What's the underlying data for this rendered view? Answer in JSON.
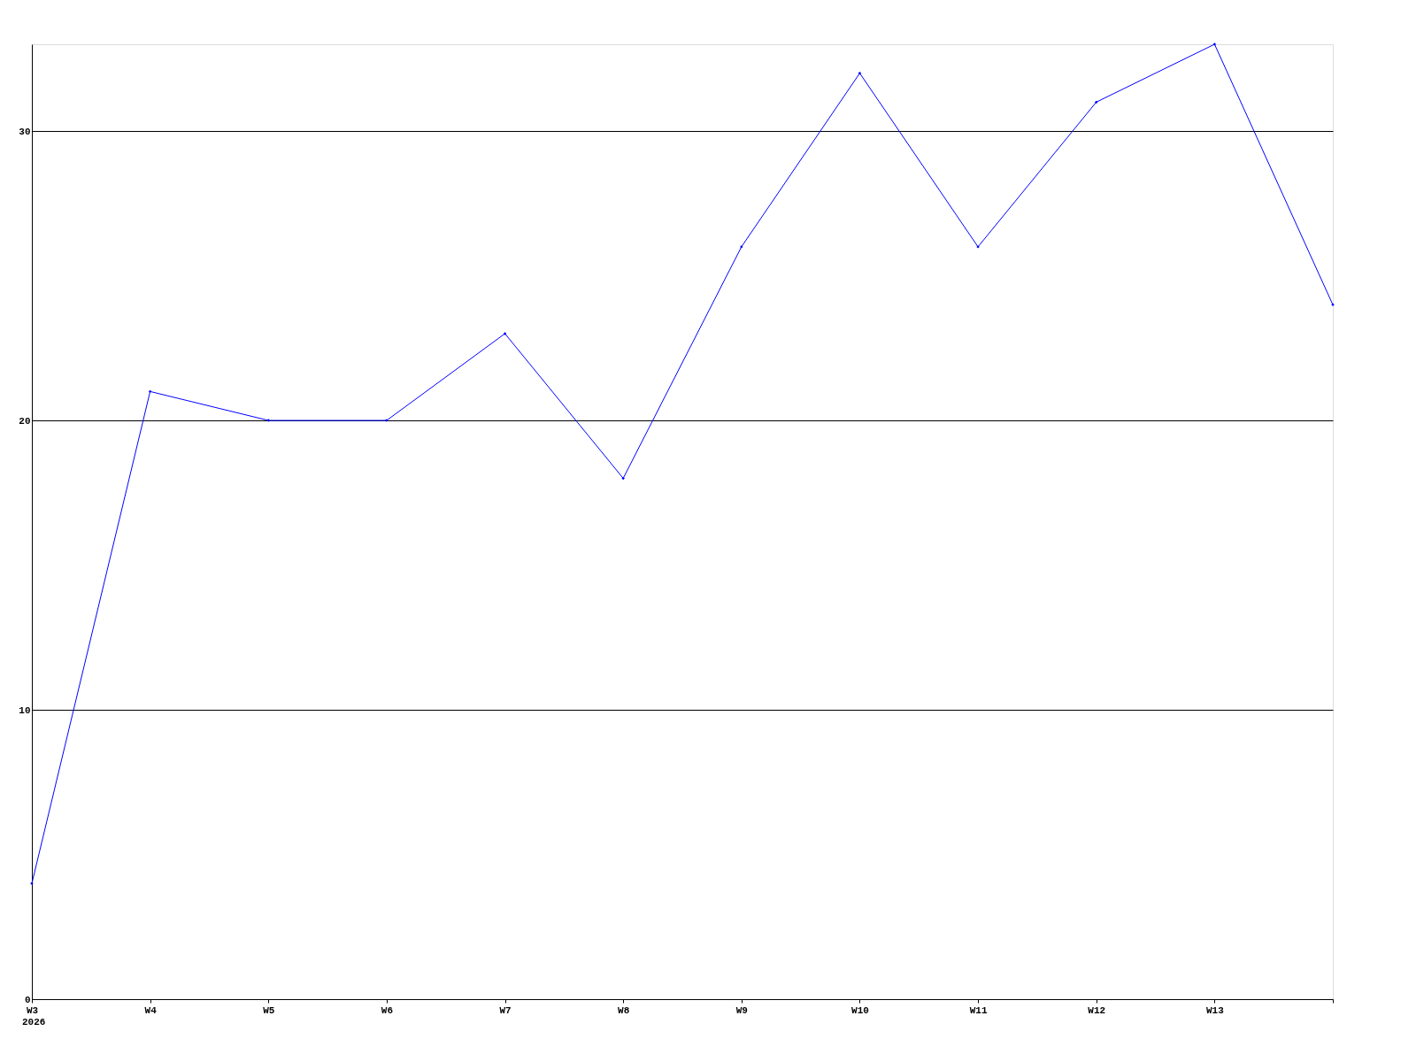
{
  "chart_data": {
    "type": "line",
    "categories": [
      "W3",
      "W4",
      "W5",
      "W6",
      "W7",
      "W8",
      "W9",
      "W10",
      "W11",
      "W12",
      "W13",
      null
    ],
    "series": [
      {
        "color": "#0000ff",
        "values": [
          4,
          21,
          20,
          20,
          23,
          18,
          26,
          32,
          26,
          31,
          33,
          24
        ]
      }
    ],
    "ylim": [
      0,
      33
    ],
    "yticks": [
      0,
      10,
      20,
      30
    ],
    "grid": "y",
    "marker": "diamond",
    "line_style": "solid",
    "annotations": [
      "2026"
    ]
  }
}
